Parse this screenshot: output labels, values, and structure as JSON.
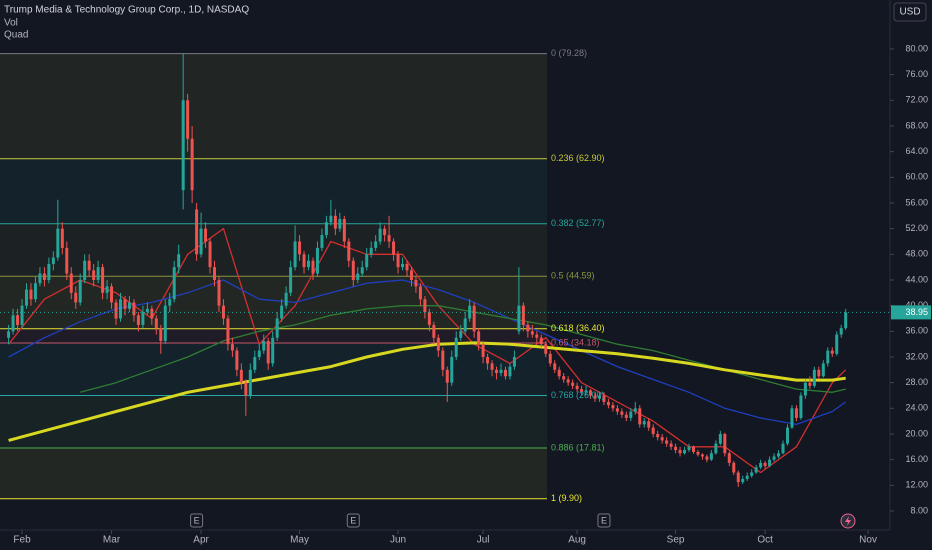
{
  "chart_data": {
    "type": "candlestick",
    "title": "Trump Media & Technology Group Corp., 1D, NASDAQ",
    "indicators": [
      "Vol",
      "Quad"
    ],
    "currency": "USD",
    "ylim": [
      5.04,
      87.63
    ],
    "yticks": [
      {
        "value": 8,
        "label": "8.00"
      },
      {
        "value": 12,
        "label": "12.00"
      },
      {
        "value": 16,
        "label": "16.00"
      },
      {
        "value": 20,
        "label": "20.00"
      },
      {
        "value": 24,
        "label": "24.00"
      },
      {
        "value": 28,
        "label": "28.00"
      },
      {
        "value": 32,
        "label": "32.00"
      },
      {
        "value": 36,
        "label": "36.00"
      },
      {
        "value": 40,
        "label": "40.00"
      },
      {
        "value": 44,
        "label": "44.00"
      },
      {
        "value": 48,
        "label": "48.00"
      },
      {
        "value": 52,
        "label": "52.00"
      },
      {
        "value": 56,
        "label": "56.00"
      },
      {
        "value": 60,
        "label": "60.00"
      },
      {
        "value": 64,
        "label": "64.00"
      },
      {
        "value": 68,
        "label": "68.00"
      },
      {
        "value": 72,
        "label": "72.00"
      },
      {
        "value": 76,
        "label": "76.00"
      },
      {
        "value": 80,
        "label": "80.00"
      }
    ],
    "xlim": [
      -1.92,
      196.9
    ],
    "xticks": [
      {
        "value": 3,
        "label": "Feb"
      },
      {
        "value": 23,
        "label": "Mar"
      },
      {
        "value": 43,
        "label": "Apr"
      },
      {
        "value": 65,
        "label": "May"
      },
      {
        "value": 87,
        "label": "Jun"
      },
      {
        "value": 106,
        "label": "Jul"
      },
      {
        "value": 127,
        "label": "Aug"
      },
      {
        "value": 149,
        "label": "Sep"
      },
      {
        "value": 169,
        "label": "Oct"
      },
      {
        "value": 192,
        "label": "Nov"
      }
    ],
    "up_color": "#26a69a",
    "down_color": "#ef5350",
    "last_price": 38.95,
    "candles": [
      [
        35.0,
        37.0,
        34.0,
        36.0
      ],
      [
        36.0,
        39.5,
        35.5,
        38.5
      ],
      [
        38.5,
        39.5,
        36.0,
        37.0
      ],
      [
        37.0,
        41.0,
        36.5,
        40.0
      ],
      [
        40.0,
        43.5,
        39.5,
        42.5
      ],
      [
        42.5,
        43.5,
        40.0,
        41.0
      ],
      [
        41.0,
        44.5,
        40.5,
        43.5
      ],
      [
        43.5,
        46.0,
        43.0,
        45.0
      ],
      [
        45.0,
        46.0,
        43.0,
        44.0
      ],
      [
        44.0,
        47.5,
        43.5,
        46.5
      ],
      [
        46.5,
        48.5,
        45.5,
        47.5
      ],
      [
        47.5,
        56.5,
        47.0,
        52.0
      ],
      [
        52.0,
        53.0,
        48.0,
        49.0
      ],
      [
        49.0,
        50.0,
        44.0,
        45.0
      ],
      [
        45.0,
        46.0,
        41.0,
        42.0
      ],
      [
        42.0,
        43.0,
        39.5,
        40.5
      ],
      [
        40.5,
        45.0,
        40.0,
        44.0
      ],
      [
        44.0,
        48.0,
        43.5,
        47.0
      ],
      [
        47.0,
        48.0,
        44.5,
        45.5
      ],
      [
        45.5,
        46.5,
        43.0,
        44.0
      ],
      [
        44.0,
        47.0,
        43.5,
        46.0
      ],
      [
        46.0,
        46.5,
        41.0,
        42.0
      ],
      [
        42.0,
        44.0,
        41.0,
        43.0
      ],
      [
        43.0,
        43.5,
        39.5,
        40.5
      ],
      [
        40.5,
        41.0,
        37.0,
        38.0
      ],
      [
        38.0,
        42.0,
        37.5,
        41.0
      ],
      [
        41.0,
        41.5,
        38.5,
        39.5
      ],
      [
        39.5,
        41.5,
        39.0,
        40.5
      ],
      [
        40.5,
        41.0,
        37.5,
        38.5
      ],
      [
        38.5,
        39.0,
        36.0,
        37.0
      ],
      [
        37.0,
        40.0,
        36.5,
        39.0
      ],
      [
        39.0,
        40.5,
        38.5,
        39.5
      ],
      [
        39.5,
        40.0,
        37.0,
        38.0
      ],
      [
        38.0,
        38.5,
        35.5,
        36.5
      ],
      [
        36.5,
        37.0,
        32.5,
        34.5
      ],
      [
        34.5,
        41.0,
        34.0,
        40.0
      ],
      [
        40.0,
        42.0,
        39.0,
        41.0
      ],
      [
        41.0,
        47.0,
        40.5,
        46.0
      ],
      [
        46.0,
        49.5,
        45.0,
        48.0
      ],
      [
        58.0,
        79.28,
        55.0,
        72.0
      ],
      [
        72.0,
        73.0,
        64.0,
        66.0
      ],
      [
        66.0,
        68.0,
        56.0,
        58.0
      ],
      [
        55.0,
        56.0,
        47.0,
        48.0
      ],
      [
        48.0,
        54.5,
        47.5,
        52.0
      ],
      [
        52.0,
        53.0,
        49.0,
        50.0
      ],
      [
        50.0,
        50.5,
        45.0,
        46.0
      ],
      [
        46.0,
        47.0,
        43.0,
        44.0
      ],
      [
        44.0,
        44.5,
        39.0,
        40.0
      ],
      [
        40.0,
        41.0,
        37.0,
        38.0
      ],
      [
        38.0,
        38.5,
        33.0,
        34.0
      ],
      [
        34.0,
        35.0,
        32.0,
        33.0
      ],
      [
        33.0,
        33.5,
        29.0,
        30.0
      ],
      [
        30.0,
        31.0,
        27.0,
        28.0
      ],
      [
        28.0,
        28.5,
        22.84,
        26.0
      ],
      [
        26.0,
        31.0,
        25.5,
        30.0
      ],
      [
        30.0,
        33.0,
        29.5,
        32.0
      ],
      [
        32.0,
        34.0,
        31.5,
        33.0
      ],
      [
        33.0,
        35.5,
        32.5,
        34.5
      ],
      [
        34.5,
        35.0,
        30.0,
        31.0
      ],
      [
        31.0,
        36.0,
        30.5,
        35.0
      ],
      [
        35.0,
        39.0,
        34.5,
        38.0
      ],
      [
        38.0,
        41.0,
        37.5,
        40.0
      ],
      [
        40.0,
        43.0,
        39.5,
        42.0
      ],
      [
        42.0,
        47.0,
        41.5,
        46.0
      ],
      [
        46.0,
        52.5,
        45.5,
        50.0
      ],
      [
        50.0,
        51.0,
        47.0,
        48.0
      ],
      [
        48.0,
        48.5,
        45.0,
        46.0
      ],
      [
        46.0,
        48.0,
        45.5,
        47.0
      ],
      [
        47.0,
        47.5,
        44.0,
        45.0
      ],
      [
        45.0,
        50.0,
        44.5,
        49.0
      ],
      [
        49.0,
        52.0,
        48.5,
        51.0
      ],
      [
        51.0,
        54.0,
        50.5,
        53.0
      ],
      [
        53.0,
        56.5,
        52.5,
        54.0
      ],
      [
        54.0,
        55.0,
        51.0,
        52.0
      ],
      [
        52.0,
        54.5,
        51.5,
        53.5
      ],
      [
        53.5,
        54.0,
        49.0,
        50.0
      ],
      [
        50.0,
        50.5,
        46.0,
        47.0
      ],
      [
        47.0,
        47.5,
        43.0,
        44.0
      ],
      [
        44.0,
        46.0,
        43.5,
        45.0
      ],
      [
        45.0,
        47.0,
        44.5,
        46.0
      ],
      [
        46.0,
        49.0,
        45.5,
        48.0
      ],
      [
        48.0,
        50.0,
        47.5,
        49.0
      ],
      [
        49.0,
        51.0,
        48.5,
        50.0
      ],
      [
        50.0,
        53.0,
        49.5,
        52.0
      ],
      [
        52.0,
        52.5,
        50.0,
        51.0
      ],
      [
        51.0,
        54.0,
        49.0,
        50.0
      ],
      [
        50.0,
        50.5,
        47.0,
        48.0
      ],
      [
        48.0,
        48.5,
        45.0,
        46.0
      ],
      [
        46.0,
        47.5,
        45.5,
        46.5
      ],
      [
        46.5,
        47.0,
        44.5,
        45.5
      ],
      [
        45.5,
        46.0,
        43.0,
        44.0
      ],
      [
        44.0,
        44.5,
        42.0,
        43.0
      ],
      [
        43.0,
        43.5,
        40.0,
        41.0
      ],
      [
        41.0,
        41.5,
        38.0,
        39.0
      ],
      [
        39.0,
        39.5,
        36.0,
        37.0
      ],
      [
        37.0,
        37.5,
        34.0,
        35.0
      ],
      [
        35.0,
        35.5,
        32.0,
        33.0
      ],
      [
        33.0,
        33.5,
        29.0,
        30.0
      ],
      [
        30.0,
        30.5,
        25.0,
        28.0
      ],
      [
        28.0,
        33.0,
        27.5,
        32.0
      ],
      [
        32.0,
        36.0,
        31.5,
        35.0
      ],
      [
        35.0,
        37.0,
        34.5,
        36.0
      ],
      [
        36.0,
        39.0,
        35.5,
        38.0
      ],
      [
        38.0,
        41.0,
        37.5,
        40.0
      ],
      [
        40.0,
        40.5,
        35.0,
        36.0
      ],
      [
        36.0,
        36.5,
        33.0,
        34.0
      ],
      [
        34.0,
        34.5,
        31.0,
        32.0
      ],
      [
        32.0,
        32.5,
        30.0,
        31.0
      ],
      [
        31.0,
        31.5,
        29.0,
        30.0
      ],
      [
        30.0,
        30.5,
        28.5,
        29.5
      ],
      [
        29.5,
        31.0,
        29.0,
        30.0
      ],
      [
        30.0,
        30.5,
        28.5,
        29.0
      ],
      [
        29.0,
        31.0,
        28.5,
        30.5
      ],
      [
        30.5,
        33.0,
        30.0,
        32.0
      ],
      [
        36.0,
        46.0,
        35.5,
        40.0
      ],
      [
        40.0,
        40.5,
        36.0,
        37.0
      ],
      [
        37.0,
        37.5,
        35.0,
        36.0
      ],
      [
        36.0,
        37.0,
        35.0,
        35.5
      ],
      [
        35.5,
        36.0,
        34.0,
        35.0
      ],
      [
        35.0,
        35.5,
        33.5,
        34.0
      ],
      [
        34.0,
        34.5,
        32.0,
        32.5
      ],
      [
        32.5,
        33.0,
        30.5,
        31.0
      ],
      [
        31.0,
        31.5,
        29.5,
        30.0
      ],
      [
        30.0,
        30.5,
        28.5,
        29.0
      ],
      [
        29.0,
        29.5,
        28.0,
        28.5
      ],
      [
        28.5,
        29.0,
        27.5,
        28.0
      ],
      [
        28.0,
        28.5,
        27.0,
        27.5
      ],
      [
        27.5,
        28.0,
        26.5,
        27.0
      ],
      [
        27.0,
        27.5,
        26.0,
        26.5
      ],
      [
        26.5,
        27.5,
        26.0,
        26.8
      ],
      [
        26.8,
        27.0,
        25.5,
        26.0
      ],
      [
        26.0,
        26.5,
        25.0,
        25.5
      ],
      [
        25.5,
        26.5,
        25.0,
        26.0
      ],
      [
        26.0,
        26.5,
        24.5,
        25.0
      ],
      [
        25.0,
        25.5,
        24.0,
        24.5
      ],
      [
        24.5,
        25.0,
        23.5,
        24.0
      ],
      [
        24.0,
        24.5,
        23.0,
        23.5
      ],
      [
        23.5,
        24.0,
        22.5,
        23.0
      ],
      [
        23.0,
        23.5,
        22.0,
        22.5
      ],
      [
        22.5,
        24.0,
        22.0,
        23.5
      ],
      [
        23.5,
        25.0,
        23.0,
        24.0
      ],
      [
        24.0,
        24.5,
        21.0,
        21.5
      ],
      [
        21.5,
        22.5,
        21.0,
        22.0
      ],
      [
        22.0,
        22.5,
        20.5,
        21.0
      ],
      [
        21.0,
        21.5,
        19.5,
        20.0
      ],
      [
        20.0,
        20.5,
        19.0,
        19.5
      ],
      [
        19.5,
        20.0,
        18.5,
        19.0
      ],
      [
        19.0,
        19.5,
        18.0,
        18.5
      ],
      [
        18.5,
        19.0,
        17.5,
        18.0
      ],
      [
        18.0,
        18.5,
        17.0,
        17.5
      ],
      [
        17.5,
        18.0,
        16.5,
        17.0
      ],
      [
        17.0,
        18.0,
        16.8,
        17.5
      ],
      [
        17.5,
        18.5,
        17.2,
        18.0
      ],
      [
        18.0,
        18.2,
        16.9,
        17.2
      ],
      [
        17.2,
        17.5,
        16.5,
        16.8
      ],
      [
        16.8,
        17.0,
        16.0,
        16.5
      ],
      [
        16.5,
        16.8,
        15.6,
        16.0
      ],
      [
        16.0,
        17.5,
        15.8,
        17.0
      ],
      [
        17.0,
        19.0,
        16.8,
        18.5
      ],
      [
        18.5,
        20.5,
        18.2,
        20.0
      ],
      [
        20.0,
        20.2,
        16.5,
        17.0
      ],
      [
        17.0,
        17.3,
        15.0,
        15.5
      ],
      [
        15.5,
        15.8,
        13.6,
        14.0
      ],
      [
        14.0,
        14.3,
        11.75,
        12.5
      ],
      [
        12.5,
        13.5,
        12.2,
        13.0
      ],
      [
        13.0,
        14.0,
        12.7,
        13.5
      ],
      [
        13.5,
        14.5,
        13.2,
        14.0
      ],
      [
        14.0,
        15.2,
        13.8,
        14.8
      ],
      [
        14.8,
        16.0,
        14.5,
        15.5
      ],
      [
        15.5,
        15.8,
        14.6,
        15.0
      ],
      [
        15.0,
        16.5,
        14.8,
        16.0
      ],
      [
        16.0,
        17.0,
        15.7,
        16.5
      ],
      [
        16.5,
        17.5,
        16.2,
        17.0
      ],
      [
        17.0,
        19.0,
        16.8,
        18.5
      ],
      [
        18.5,
        21.5,
        18.2,
        21.0
      ],
      [
        21.0,
        24.5,
        20.8,
        24.0
      ],
      [
        24.0,
        24.5,
        22.0,
        22.5
      ],
      [
        22.5,
        26.5,
        22.2,
        26.0
      ],
      [
        26.0,
        28.5,
        25.5,
        28.0
      ],
      [
        28.0,
        29.0,
        27.0,
        27.5
      ],
      [
        27.5,
        30.5,
        27.2,
        30.0
      ],
      [
        30.0,
        30.5,
        28.5,
        29.0
      ],
      [
        29.0,
        31.5,
        28.8,
        31.0
      ],
      [
        31.0,
        33.5,
        30.5,
        33.0
      ],
      [
        33.0,
        33.5,
        32.0,
        32.5
      ],
      [
        32.5,
        36.0,
        32.2,
        35.5
      ],
      [
        35.5,
        37.0,
        35.0,
        36.5
      ],
      [
        36.5,
        39.5,
        36.2,
        38.95
      ]
    ],
    "overlays": {
      "x": [
        0,
        8,
        16,
        24,
        32,
        40,
        48,
        56,
        64,
        72,
        80,
        88,
        96,
        104,
        112,
        120,
        128,
        136,
        144,
        152,
        160,
        168,
        176,
        184,
        187
      ],
      "series": [
        {
          "color": "#d32f2f",
          "width": 1.3,
          "values": [
            34,
            41,
            44,
            42,
            38,
            48,
            52,
            34,
            40,
            50,
            48,
            48,
            40,
            34,
            31,
            35,
            28,
            25,
            22,
            18,
            18,
            14,
            18,
            28,
            30
          ]
        },
        {
          "color": "#1e3fc0",
          "width": 1.3,
          "values": [
            32,
            35,
            37.5,
            39.5,
            40.5,
            42,
            44,
            41,
            40.5,
            42,
            43.5,
            44,
            42.5,
            40.5,
            38,
            35.5,
            33,
            30.5,
            28.5,
            26.5,
            24,
            22.5,
            21.5,
            23.5,
            25
          ]
        },
        {
          "color": "#2e7d32",
          "width": 1.3,
          "values": [
            null,
            null,
            26.5,
            28,
            30,
            32,
            34.5,
            36,
            37,
            38.5,
            39.5,
            40,
            40,
            39,
            38,
            37,
            35.5,
            34,
            33,
            31.5,
            30,
            28.5,
            27,
            26.5,
            27
          ]
        },
        {
          "color": "#d8d820",
          "width": 3,
          "values": [
            19,
            20.5,
            22,
            23.5,
            25,
            26.5,
            27.5,
            28.5,
            29.5,
            30.5,
            32,
            33.2,
            34,
            34.2,
            34,
            33.5,
            33,
            32.5,
            31.8,
            31,
            30,
            29.2,
            28.4,
            28.4,
            28.7
          ]
        }
      ]
    },
    "fib_levels": [
      {
        "value": 79.28,
        "label": "0 (79.28)",
        "color": "#787b86"
      },
      {
        "value": 62.9,
        "label": "0.236 (62.90)",
        "color": "#c9c93a"
      },
      {
        "value": 52.77,
        "label": "0.382 (52.77)",
        "color": "#26a69a"
      },
      {
        "value": 44.59,
        "label": "0.5 (44.59)",
        "color": "#8a9440"
      },
      {
        "value": 36.4,
        "label": "0.618 (36.40)",
        "color": "#e6e632"
      },
      {
        "value": 34.18,
        "label": "0.65 (34.18)",
        "color": "#c4566a"
      },
      {
        "value": 26.0,
        "label": "0.768 (26.00)",
        "color": "#26a6a6"
      },
      {
        "value": 17.81,
        "label": "0.886 (17.81)",
        "color": "#4caf50"
      },
      {
        "value": 9.9,
        "label": "1 (9.90)",
        "color": "#e6e632"
      }
    ],
    "events": [
      {
        "x": 42,
        "label": "E"
      },
      {
        "x": 77,
        "label": "E"
      },
      {
        "x": 133,
        "label": "E"
      }
    ]
  }
}
